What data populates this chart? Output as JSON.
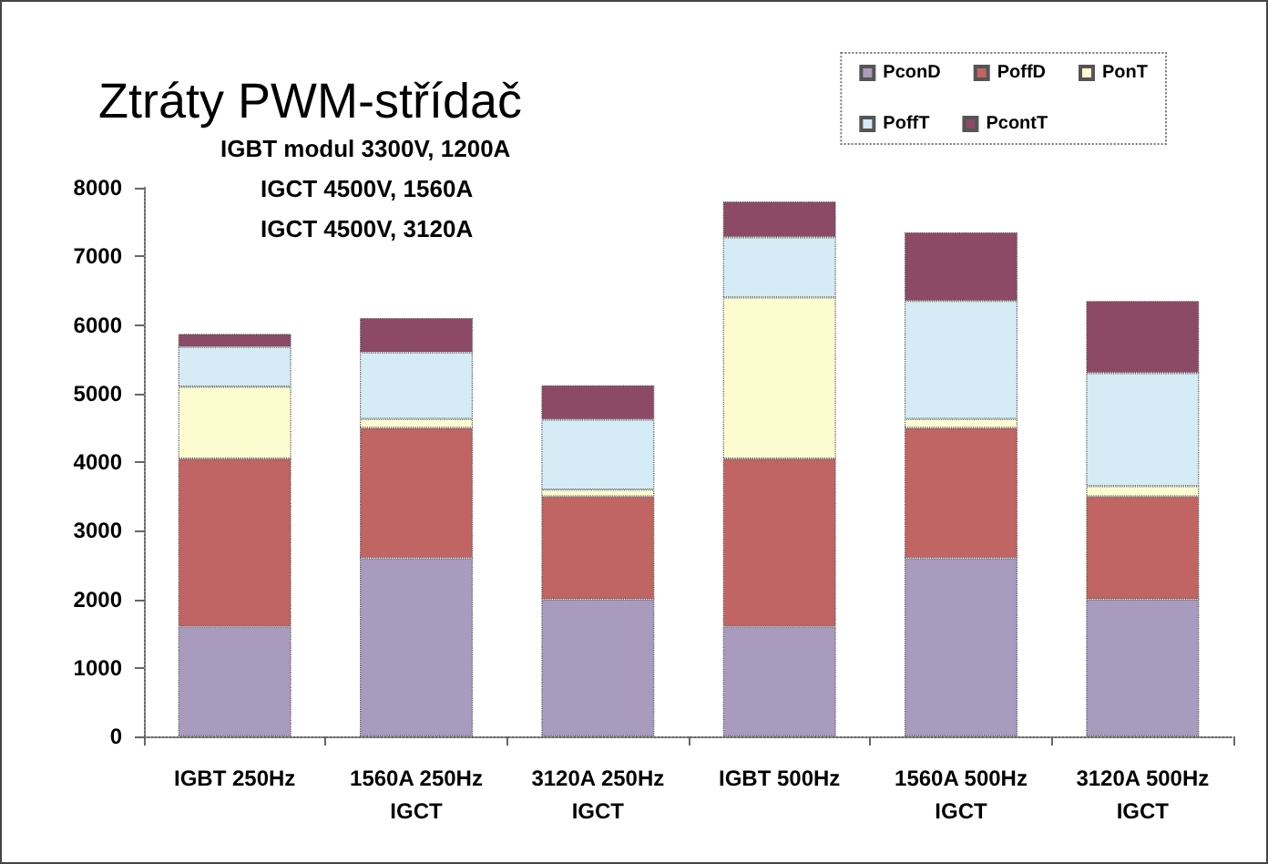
{
  "chart_data": {
    "type": "bar",
    "stacked": true,
    "title": "Ztráty PWM-střídač",
    "annotations": [
      "IGBT modul 3300V, 1200A",
      "IGCT 4500V, 1560A",
      "IGCT 4500V, 3120A"
    ],
    "categories": [
      "IGBT 250Hz",
      "1560A 250Hz\nIGCT",
      "3120A 250Hz\nIGCT",
      "IGBT 500Hz",
      "1560A 500Hz\nIGCT",
      "3120A 500Hz\nIGCT"
    ],
    "series": [
      {
        "name": "PconD",
        "color": "#a99bbd",
        "values": [
          1600,
          2600,
          2000,
          1600,
          2600,
          2000
        ]
      },
      {
        "name": "PoffD",
        "color": "#c06464",
        "values": [
          2450,
          1900,
          1500,
          2450,
          1900,
          1500
        ]
      },
      {
        "name": "PonT",
        "color": "#fdfbd0",
        "values": [
          1050,
          130,
          100,
          2350,
          130,
          150
        ]
      },
      {
        "name": "PoffT",
        "color": "#d5ebf5",
        "values": [
          580,
          970,
          1020,
          880,
          1720,
          1650
        ]
      },
      {
        "name": "PcontT",
        "color": "#8c4a66",
        "values": [
          190,
          500,
          500,
          520,
          1000,
          1050
        ]
      }
    ],
    "ylim": [
      0,
      8000
    ],
    "yticks": [
      0,
      1000,
      2000,
      3000,
      4000,
      5000,
      6000,
      7000,
      8000
    ],
    "grid": false,
    "legend": "top right"
  }
}
